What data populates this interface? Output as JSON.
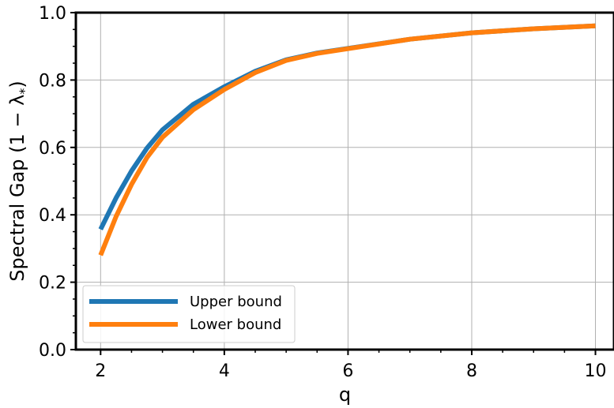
{
  "chart_data": {
    "type": "line",
    "xlabel": "q",
    "ylabel": "Spectral Gap (1 − λ",
    "ylabel_sub": "*",
    "ylabel_close": ")",
    "xlim": [
      1.6,
      10.3
    ],
    "ylim": [
      0.0,
      1.0
    ],
    "xticks": [
      2,
      4,
      6,
      8,
      10
    ],
    "yticks": [
      0.0,
      0.2,
      0.4,
      0.6,
      0.8,
      1.0
    ],
    "xtick_labels": [
      "2",
      "4",
      "6",
      "8",
      "10"
    ],
    "ytick_labels": [
      "0.0",
      "0.2",
      "0.4",
      "0.6",
      "0.8",
      "1.0"
    ],
    "grid": true,
    "legend_position": "lower-left",
    "x": [
      2.0,
      2.25,
      2.5,
      2.75,
      3.0,
      3.5,
      4.0,
      4.5,
      5.0,
      5.5,
      6.0,
      7.0,
      8.0,
      9.0,
      10.0
    ],
    "series": [
      {
        "name": "Upper bound",
        "color": "#1f77b4",
        "values": [
          0.357,
          0.45,
          0.53,
          0.598,
          0.652,
          0.728,
          0.78,
          0.826,
          0.86,
          0.88,
          0.894,
          0.921,
          0.94,
          0.952,
          0.961
        ]
      },
      {
        "name": "Lower bound",
        "color": "#ff7f0e",
        "values": [
          0.28,
          0.395,
          0.49,
          0.57,
          0.63,
          0.712,
          0.772,
          0.822,
          0.858,
          0.879,
          0.893,
          0.921,
          0.94,
          0.952,
          0.961
        ]
      }
    ]
  }
}
